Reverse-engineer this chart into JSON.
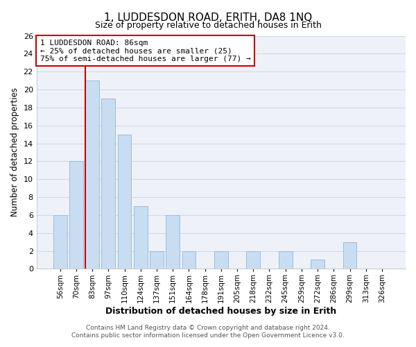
{
  "title": "1, LUDDESDON ROAD, ERITH, DA8 1NQ",
  "subtitle": "Size of property relative to detached houses in Erith",
  "xlabel": "Distribution of detached houses by size in Erith",
  "ylabel": "Number of detached properties",
  "bar_labels": [
    "56sqm",
    "70sqm",
    "83sqm",
    "97sqm",
    "110sqm",
    "124sqm",
    "137sqm",
    "151sqm",
    "164sqm",
    "178sqm",
    "191sqm",
    "205sqm",
    "218sqm",
    "232sqm",
    "245sqm",
    "259sqm",
    "272sqm",
    "286sqm",
    "299sqm",
    "313sqm",
    "326sqm"
  ],
  "bar_heights": [
    6,
    12,
    21,
    19,
    15,
    7,
    2,
    6,
    2,
    0,
    2,
    0,
    2,
    0,
    2,
    0,
    1,
    0,
    3,
    0,
    0
  ],
  "bar_color": "#c9ddf2",
  "bar_edge_color": "#9bbcdb",
  "vline_color": "#cc0000",
  "ylim": [
    0,
    26
  ],
  "yticks": [
    0,
    2,
    4,
    6,
    8,
    10,
    12,
    14,
    16,
    18,
    20,
    22,
    24,
    26
  ],
  "annotation_title": "1 LUDDESDON ROAD: 86sqm",
  "annotation_line1": "← 25% of detached houses are smaller (25)",
  "annotation_line2": "75% of semi-detached houses are larger (77) →",
  "footer1": "Contains HM Land Registry data © Crown copyright and database right 2024.",
  "footer2": "Contains public sector information licensed under the Open Government Licence v3.0.",
  "grid_color": "#d0d8e8",
  "title_fontsize": 11,
  "subtitle_fontsize": 9
}
